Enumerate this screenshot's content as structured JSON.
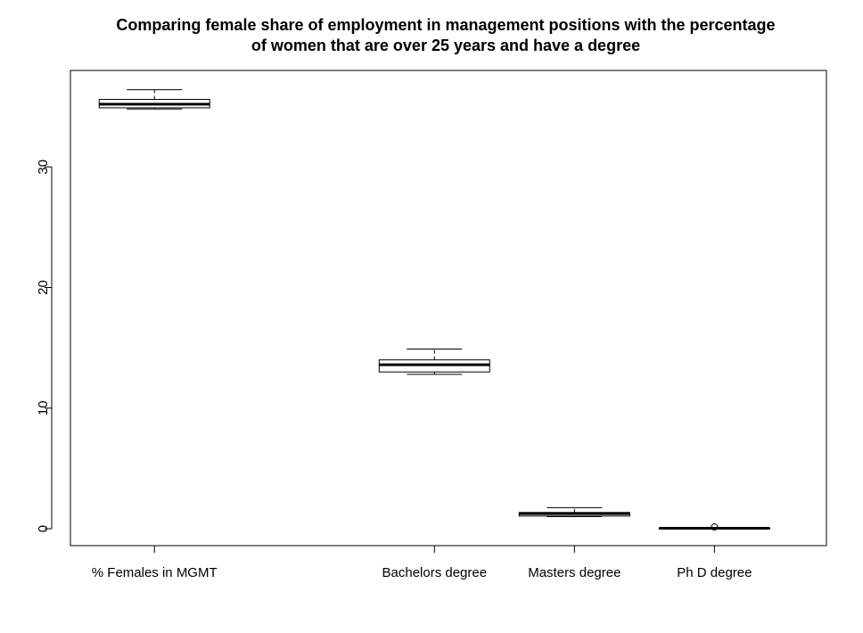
{
  "chart_data": {
    "type": "box",
    "title": "Comparing female share of employment in management positions with the percentage of women that are over 25 years and have a degree",
    "title_lines": [
      "Comparing female share of employment in management positions with the percentage",
      "of women that are over 25 years and have a degree"
    ],
    "xlabel": "",
    "ylabel": "",
    "ylim": [
      -1.4,
      38.0
    ],
    "yticks": [
      0,
      10,
      20,
      30
    ],
    "grid": false,
    "categories": [
      "% Females in MGMT",
      "Bachelors degree",
      "Masters degree",
      "Ph D degree"
    ],
    "positions": [
      1,
      3,
      4,
      5
    ],
    "xlim": [
      0.4,
      5.8
    ],
    "boxes": [
      {
        "label": "% Females in MGMT",
        "position": 1,
        "min": 34.8,
        "q1": 34.9,
        "median": 35.2,
        "q3": 35.6,
        "max": 36.4,
        "outliers": []
      },
      {
        "label": "Bachelors degree",
        "position": 3,
        "min": 12.8,
        "q1": 13.0,
        "median": 13.6,
        "q3": 14.0,
        "max": 14.9,
        "outliers": []
      },
      {
        "label": "Masters degree",
        "position": 4,
        "min": 1.0,
        "q1": 1.05,
        "median": 1.25,
        "q3": 1.35,
        "max": 1.75,
        "outliers": []
      },
      {
        "label": "Ph D degree",
        "position": 5,
        "min": 0.0,
        "q1": 0.02,
        "median": 0.04,
        "q3": 0.06,
        "max": 0.08,
        "outliers": [
          0.15
        ]
      }
    ]
  }
}
